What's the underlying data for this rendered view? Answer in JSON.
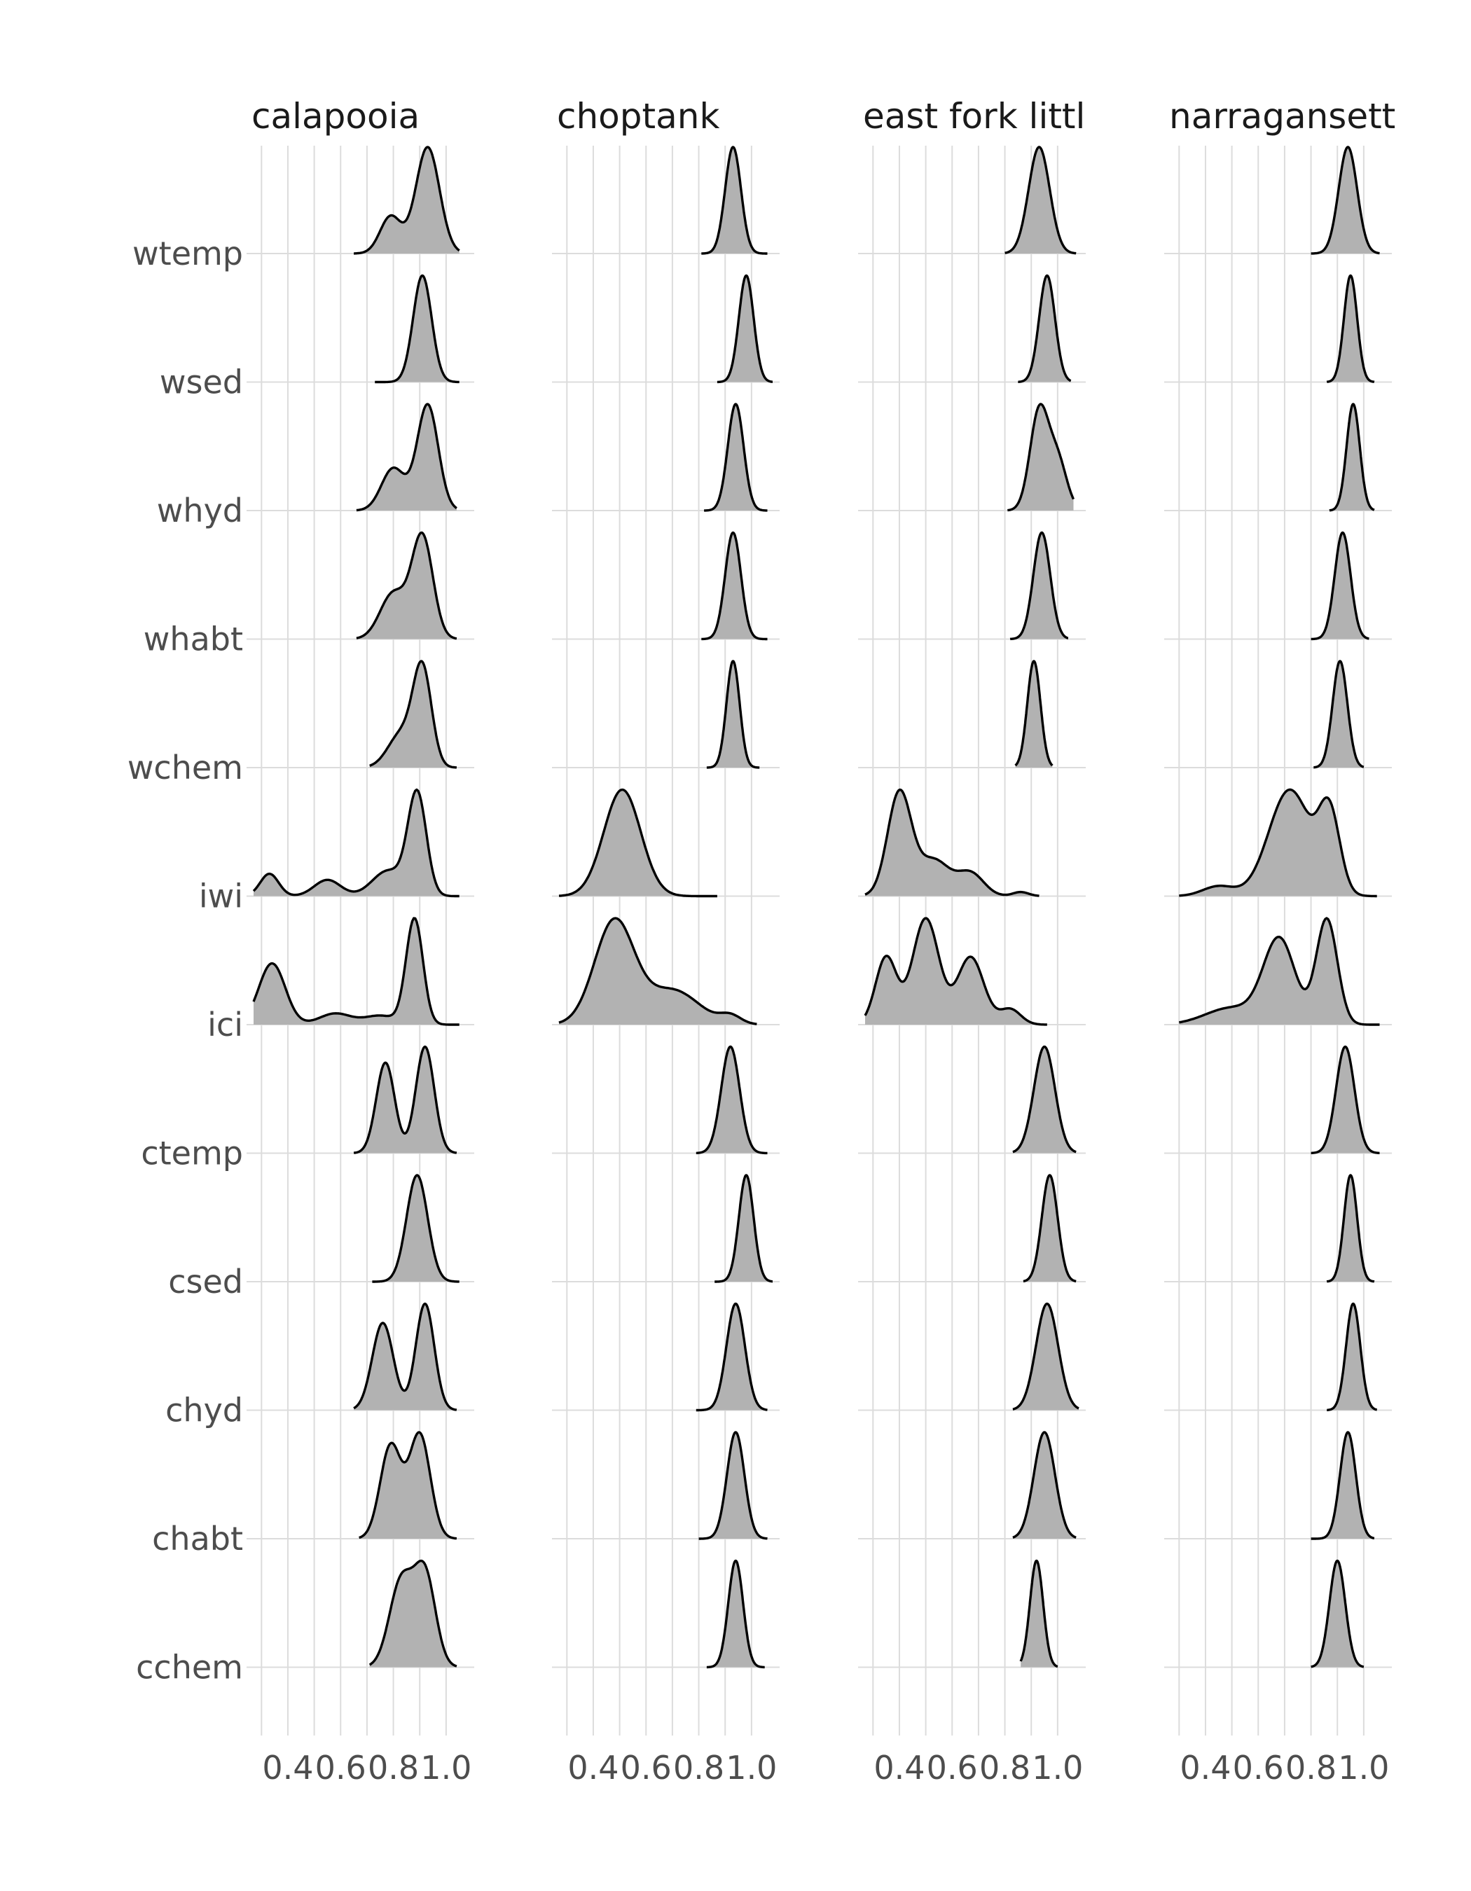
{
  "chart_data": {
    "type": "ridgeline",
    "title": "",
    "xlabel": "",
    "ylabel": "",
    "facets": [
      "calapooia",
      "choptank",
      "east fork littl",
      "narragansett"
    ],
    "rows": [
      "wtemp",
      "wsed",
      "whyd",
      "whabt",
      "wchem",
      "iwi",
      "ici",
      "ctemp",
      "csed",
      "chyd",
      "chabt",
      "cchem"
    ],
    "x_ticks": [
      0.4,
      0.6,
      0.8,
      1.0
    ],
    "x_tick_labels": [
      "0.4",
      "0.6",
      "0.8",
      "1.0"
    ],
    "xlim": [
      0.27,
      1.08
    ],
    "grid": true,
    "fill_color": "#b2b2b2",
    "line_color": "#000000",
    "series": [
      {
        "facet": "calapooia",
        "row": "wtemp",
        "range": [
          0.65,
          1.05
        ],
        "components": [
          [
            0.93,
            0.045,
            1.0
          ],
          [
            0.79,
            0.04,
            0.35
          ]
        ]
      },
      {
        "facet": "calapooia",
        "row": "wsed",
        "range": [
          0.73,
          1.05
        ],
        "components": [
          [
            0.91,
            0.035,
            1.0
          ]
        ]
      },
      {
        "facet": "calapooia",
        "row": "whyd",
        "range": [
          0.66,
          1.04
        ],
        "components": [
          [
            0.93,
            0.04,
            1.0
          ],
          [
            0.8,
            0.045,
            0.4
          ]
        ]
      },
      {
        "facet": "calapooia",
        "row": "whabt",
        "range": [
          0.66,
          1.04
        ],
        "components": [
          [
            0.91,
            0.04,
            1.0
          ],
          [
            0.8,
            0.05,
            0.45
          ]
        ]
      },
      {
        "facet": "calapooia",
        "row": "wchem",
        "range": [
          0.71,
          1.04
        ],
        "components": [
          [
            0.91,
            0.035,
            1.0
          ],
          [
            0.83,
            0.05,
            0.35
          ]
        ]
      },
      {
        "facet": "calapooia",
        "row": "iwi",
        "range": [
          0.27,
          1.05
        ],
        "components": [
          [
            0.89,
            0.035,
            1.0
          ],
          [
            0.33,
            0.035,
            0.22
          ],
          [
            0.55,
            0.05,
            0.16
          ],
          [
            0.78,
            0.06,
            0.25
          ]
        ]
      },
      {
        "facet": "calapooia",
        "row": "ici",
        "range": [
          0.27,
          1.05
        ],
        "components": [
          [
            0.88,
            0.032,
            0.95
          ],
          [
            0.34,
            0.05,
            0.55
          ],
          [
            0.58,
            0.06,
            0.1
          ],
          [
            0.75,
            0.06,
            0.08
          ]
        ]
      },
      {
        "facet": "calapooia",
        "row": "ctemp",
        "range": [
          0.65,
          1.04
        ],
        "components": [
          [
            0.77,
            0.035,
            0.85
          ],
          [
            0.92,
            0.035,
            1.0
          ]
        ]
      },
      {
        "facet": "calapooia",
        "row": "csed",
        "range": [
          0.72,
          1.05
        ],
        "components": [
          [
            0.89,
            0.04,
            1.0
          ]
        ]
      },
      {
        "facet": "calapooia",
        "row": "chyd",
        "range": [
          0.65,
          1.04
        ],
        "components": [
          [
            0.76,
            0.04,
            0.82
          ],
          [
            0.92,
            0.035,
            1.0
          ]
        ]
      },
      {
        "facet": "calapooia",
        "row": "chabt",
        "range": [
          0.67,
          1.04
        ],
        "components": [
          [
            0.79,
            0.04,
            0.85
          ],
          [
            0.9,
            0.04,
            0.95
          ]
        ]
      },
      {
        "facet": "calapooia",
        "row": "cchem",
        "range": [
          0.71,
          1.04
        ],
        "components": [
          [
            0.83,
            0.045,
            0.85
          ],
          [
            0.92,
            0.04,
            0.9
          ]
        ]
      },
      {
        "facet": "choptank",
        "row": "wtemp",
        "range": [
          0.81,
          1.06
        ],
        "components": [
          [
            0.93,
            0.03,
            1.0
          ]
        ]
      },
      {
        "facet": "choptank",
        "row": "wsed",
        "range": [
          0.87,
          1.08
        ],
        "components": [
          [
            0.98,
            0.028,
            1.0
          ]
        ]
      },
      {
        "facet": "choptank",
        "row": "whyd",
        "range": [
          0.82,
          1.06
        ],
        "components": [
          [
            0.94,
            0.03,
            1.0
          ]
        ]
      },
      {
        "facet": "choptank",
        "row": "whabt",
        "range": [
          0.81,
          1.06
        ],
        "components": [
          [
            0.93,
            0.03,
            1.0
          ]
        ]
      },
      {
        "facet": "choptank",
        "row": "wchem",
        "range": [
          0.83,
          1.03
        ],
        "components": [
          [
            0.93,
            0.025,
            1.0
          ]
        ]
      },
      {
        "facet": "choptank",
        "row": "iwi",
        "range": [
          0.27,
          0.87
        ],
        "components": [
          [
            0.51,
            0.07,
            1.0
          ]
        ]
      },
      {
        "facet": "choptank",
        "row": "ici",
        "range": [
          0.27,
          1.02
        ],
        "components": [
          [
            0.48,
            0.075,
            0.75
          ],
          [
            0.7,
            0.1,
            0.25
          ],
          [
            0.92,
            0.04,
            0.06
          ]
        ]
      },
      {
        "facet": "choptank",
        "row": "ctemp",
        "range": [
          0.79,
          1.06
        ],
        "components": [
          [
            0.92,
            0.035,
            1.0
          ]
        ]
      },
      {
        "facet": "choptank",
        "row": "csed",
        "range": [
          0.86,
          1.08
        ],
        "components": [
          [
            0.98,
            0.028,
            1.0
          ]
        ]
      },
      {
        "facet": "choptank",
        "row": "chyd",
        "range": [
          0.79,
          1.06
        ],
        "components": [
          [
            0.94,
            0.035,
            1.0
          ]
        ]
      },
      {
        "facet": "choptank",
        "row": "chabt",
        "range": [
          0.8,
          1.06
        ],
        "components": [
          [
            0.94,
            0.033,
            1.0
          ]
        ]
      },
      {
        "facet": "choptank",
        "row": "cchem",
        "range": [
          0.83,
          1.05
        ],
        "components": [
          [
            0.94,
            0.028,
            1.0
          ]
        ]
      },
      {
        "facet": "east fork littl",
        "row": "wtemp",
        "range": [
          0.8,
          1.07
        ],
        "components": [
          [
            0.93,
            0.04,
            1.0
          ]
        ]
      },
      {
        "facet": "east fork littl",
        "row": "wsed",
        "range": [
          0.85,
          1.05
        ],
        "components": [
          [
            0.96,
            0.03,
            1.0
          ]
        ]
      },
      {
        "facet": "east fork littl",
        "row": "whyd",
        "range": [
          0.81,
          1.06
        ],
        "components": [
          [
            0.93,
            0.035,
            1.0
          ],
          [
            1.0,
            0.035,
            0.5
          ]
        ]
      },
      {
        "facet": "east fork littl",
        "row": "whabt",
        "range": [
          0.82,
          1.04
        ],
        "components": [
          [
            0.94,
            0.032,
            1.0
          ]
        ]
      },
      {
        "facet": "east fork littl",
        "row": "wchem",
        "range": [
          0.84,
          0.98
        ],
        "components": [
          [
            0.91,
            0.025,
            1.0
          ]
        ]
      },
      {
        "facet": "east fork littl",
        "row": "iwi",
        "range": [
          0.27,
          0.93
        ],
        "components": [
          [
            0.4,
            0.045,
            1.0
          ],
          [
            0.53,
            0.06,
            0.35
          ],
          [
            0.67,
            0.05,
            0.22
          ],
          [
            0.86,
            0.03,
            0.04
          ]
        ]
      },
      {
        "facet": "east fork littl",
        "row": "ici",
        "range": [
          0.27,
          0.96
        ],
        "components": [
          [
            0.35,
            0.04,
            0.35
          ],
          [
            0.5,
            0.05,
            0.55
          ],
          [
            0.67,
            0.05,
            0.35
          ],
          [
            0.82,
            0.04,
            0.08
          ]
        ]
      },
      {
        "facet": "east fork littl",
        "row": "ctemp",
        "range": [
          0.83,
          1.07
        ],
        "components": [
          [
            0.95,
            0.04,
            1.0
          ]
        ]
      },
      {
        "facet": "east fork littl",
        "row": "csed",
        "range": [
          0.87,
          1.07
        ],
        "components": [
          [
            0.97,
            0.03,
            1.0
          ]
        ]
      },
      {
        "facet": "east fork littl",
        "row": "chyd",
        "range": [
          0.83,
          1.08
        ],
        "components": [
          [
            0.96,
            0.042,
            1.0
          ]
        ]
      },
      {
        "facet": "east fork littl",
        "row": "chabt",
        "range": [
          0.83,
          1.07
        ],
        "components": [
          [
            0.95,
            0.04,
            1.0
          ]
        ]
      },
      {
        "facet": "east fork littl",
        "row": "cchem",
        "range": [
          0.86,
          1.0
        ],
        "components": [
          [
            0.92,
            0.025,
            1.0
          ]
        ]
      },
      {
        "facet": "narragansett",
        "row": "wtemp",
        "range": [
          0.8,
          1.06
        ],
        "components": [
          [
            0.94,
            0.035,
            1.0
          ]
        ]
      },
      {
        "facet": "narragansett",
        "row": "wsed",
        "range": [
          0.86,
          1.04
        ],
        "components": [
          [
            0.95,
            0.025,
            1.0
          ]
        ]
      },
      {
        "facet": "narragansett",
        "row": "whyd",
        "range": [
          0.87,
          1.04
        ],
        "components": [
          [
            0.96,
            0.025,
            1.0
          ]
        ]
      },
      {
        "facet": "narragansett",
        "row": "whabt",
        "range": [
          0.8,
          1.02
        ],
        "components": [
          [
            0.92,
            0.03,
            1.0
          ]
        ]
      },
      {
        "facet": "narragansett",
        "row": "wchem",
        "range": [
          0.81,
          1.0
        ],
        "components": [
          [
            0.91,
            0.028,
            1.0
          ]
        ]
      },
      {
        "facet": "narragansett",
        "row": "iwi",
        "range": [
          0.3,
          1.05
        ],
        "components": [
          [
            0.72,
            0.08,
            0.75
          ],
          [
            0.87,
            0.04,
            0.55
          ],
          [
            0.45,
            0.06,
            0.07
          ]
        ]
      },
      {
        "facet": "narragansett",
        "row": "ici",
        "range": [
          0.3,
          1.06
        ],
        "components": [
          [
            0.68,
            0.06,
            0.6
          ],
          [
            0.86,
            0.04,
            0.75
          ],
          [
            0.5,
            0.1,
            0.12
          ]
        ]
      },
      {
        "facet": "narragansett",
        "row": "ctemp",
        "range": [
          0.8,
          1.06
        ],
        "components": [
          [
            0.93,
            0.035,
            1.0
          ]
        ]
      },
      {
        "facet": "narragansett",
        "row": "csed",
        "range": [
          0.86,
          1.04
        ],
        "components": [
          [
            0.95,
            0.025,
            1.0
          ]
        ]
      },
      {
        "facet": "narragansett",
        "row": "chyd",
        "range": [
          0.86,
          1.05
        ],
        "components": [
          [
            0.96,
            0.027,
            1.0
          ]
        ]
      },
      {
        "facet": "narragansett",
        "row": "chabt",
        "range": [
          0.8,
          1.04
        ],
        "components": [
          [
            0.94,
            0.03,
            1.0
          ]
        ]
      },
      {
        "facet": "narragansett",
        "row": "cchem",
        "range": [
          0.8,
          1.0
        ],
        "components": [
          [
            0.9,
            0.03,
            1.0
          ]
        ]
      }
    ]
  }
}
